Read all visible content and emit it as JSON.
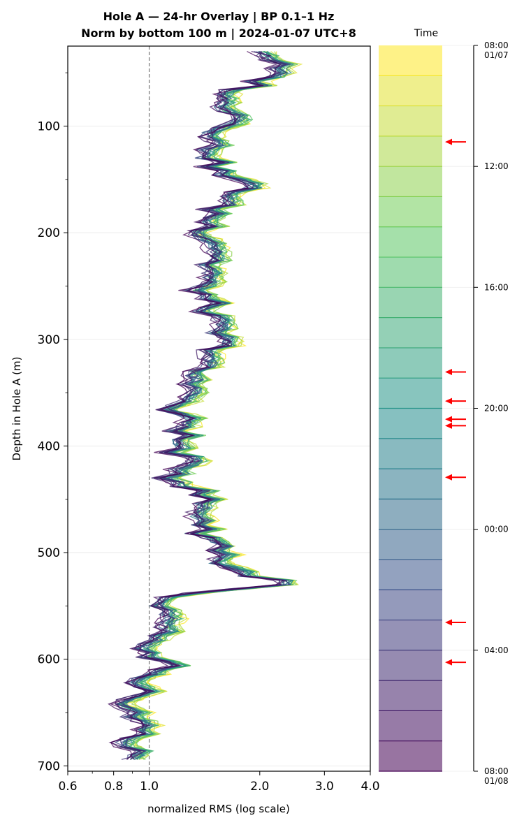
{
  "chart_data": {
    "type": "line",
    "title_line1": "Hole A — 24-hr Overlay  |  BP 0.1–1 Hz",
    "title_line2": "Norm by bottom 100 m  |  2024-01-07 UTC+8",
    "xlabel": "normalized RMS  (log scale)",
    "ylabel": "Depth in Hole A (m)",
    "xscale": "log",
    "xlim": [
      0.6,
      4.0
    ],
    "ylim": [
      705,
      25
    ],
    "xticks": [
      {
        "value": 0.6,
        "label": "0.6"
      },
      {
        "value": 0.8,
        "label": "0.8"
      },
      {
        "value": 1.0,
        "label": "1.0"
      },
      {
        "value": 2.0,
        "label": "2.0"
      },
      {
        "value": 3.0,
        "label": "3.0"
      },
      {
        "value": 4.0,
        "label": "4.0"
      }
    ],
    "yticks": [
      {
        "value": 100,
        "label": "100"
      },
      {
        "value": 200,
        "label": "200"
      },
      {
        "value": 300,
        "label": "300"
      },
      {
        "value": 400,
        "label": "400"
      },
      {
        "value": 500,
        "label": "500"
      },
      {
        "value": 600,
        "label": "600"
      },
      {
        "value": 700,
        "label": "700"
      }
    ],
    "reference_line_x": 1.0,
    "grid": "horizontal",
    "series_count": 24,
    "colormap": [
      "#440154",
      "#3b528b",
      "#21918c",
      "#5ec962",
      "#fde725"
    ],
    "depth_profile": [
      [
        30,
        2.1
      ],
      [
        40,
        2.25
      ],
      [
        50,
        2.2
      ],
      [
        60,
        2.05
      ],
      [
        68,
        1.75
      ],
      [
        75,
        1.55
      ],
      [
        82,
        1.7
      ],
      [
        90,
        1.85
      ],
      [
        100,
        1.7
      ],
      [
        108,
        1.6
      ],
      [
        115,
        1.5
      ],
      [
        125,
        1.55
      ],
      [
        135,
        1.52
      ],
      [
        145,
        1.6
      ],
      [
        152,
        1.78
      ],
      [
        158,
        1.95
      ],
      [
        165,
        1.7
      ],
      [
        172,
        1.6
      ],
      [
        180,
        1.55
      ],
      [
        190,
        1.5
      ],
      [
        200,
        1.45
      ],
      [
        210,
        1.55
      ],
      [
        220,
        1.6
      ],
      [
        230,
        1.5
      ],
      [
        240,
        1.48
      ],
      [
        250,
        1.4
      ],
      [
        260,
        1.45
      ],
      [
        270,
        1.5
      ],
      [
        280,
        1.48
      ],
      [
        290,
        1.55
      ],
      [
        300,
        1.6
      ],
      [
        310,
        1.58
      ],
      [
        320,
        1.45
      ],
      [
        330,
        1.35
      ],
      [
        340,
        1.3
      ],
      [
        350,
        1.45
      ],
      [
        355,
        1.3
      ],
      [
        360,
        1.2
      ],
      [
        365,
        1.15
      ],
      [
        370,
        1.22
      ],
      [
        380,
        1.3
      ],
      [
        390,
        1.25
      ],
      [
        400,
        1.2
      ],
      [
        410,
        1.25
      ],
      [
        420,
        1.3
      ],
      [
        430,
        1.2
      ],
      [
        440,
        1.35
      ],
      [
        450,
        1.45
      ],
      [
        460,
        1.4
      ],
      [
        470,
        1.45
      ],
      [
        480,
        1.4
      ],
      [
        490,
        1.55
      ],
      [
        500,
        1.65
      ],
      [
        510,
        1.6
      ],
      [
        515,
        1.7
      ],
      [
        520,
        1.85
      ],
      [
        525,
        2.2
      ],
      [
        530,
        2.3
      ],
      [
        535,
        1.6
      ],
      [
        540,
        1.1
      ],
      [
        545,
        1.05
      ],
      [
        550,
        1.05
      ],
      [
        560,
        1.1
      ],
      [
        570,
        1.15
      ],
      [
        580,
        1.05
      ],
      [
        588,
        0.9
      ],
      [
        595,
        1.0
      ],
      [
        600,
        1.05
      ],
      [
        605,
        1.2
      ],
      [
        610,
        1.05
      ],
      [
        620,
        0.88
      ],
      [
        630,
        0.95
      ],
      [
        640,
        0.9
      ],
      [
        650,
        0.92
      ],
      [
        660,
        0.95
      ],
      [
        670,
        1.0
      ],
      [
        680,
        0.85
      ],
      [
        690,
        0.92
      ],
      [
        697,
        0.95
      ]
    ],
    "time_bins": 24,
    "time_ticks": [
      {
        "label": "08:00\n01/07",
        "fraction": 0.0
      },
      {
        "label": "12:00",
        "fraction": 0.1667
      },
      {
        "label": "16:00",
        "fraction": 0.3333
      },
      {
        "label": "20:00",
        "fraction": 0.5
      },
      {
        "label": "00:00",
        "fraction": 0.6667
      },
      {
        "label": "04:00",
        "fraction": 0.8333
      },
      {
        "label": "08:00\n01/08",
        "fraction": 1.0
      }
    ],
    "time_label": "Time",
    "arrow_color": "#ff0000",
    "arrow_fractions": [
      0.133,
      0.45,
      0.49,
      0.515,
      0.524,
      0.595,
      0.795,
      0.85
    ]
  }
}
